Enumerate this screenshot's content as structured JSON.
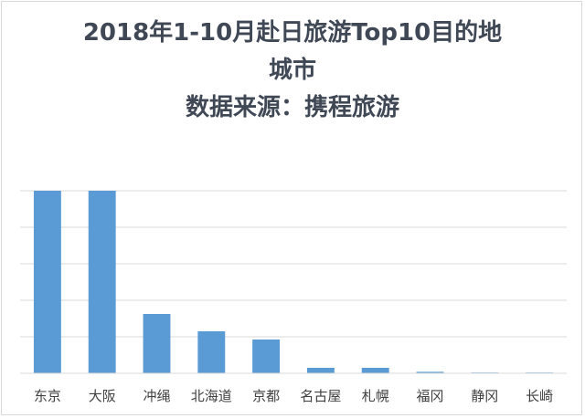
{
  "chart_data": {
    "type": "bar",
    "title_lines": [
      "2018年1-10月赴日旅游Top10目的地",
      "城市",
      "数据来源：携程旅游"
    ],
    "categories": [
      "东京",
      "大阪",
      "冲绳",
      "北海道",
      "京都",
      "名古屋",
      "札幌",
      "福冈",
      "静冈",
      "长崎"
    ],
    "values": [
      100,
      100,
      32.5,
      23,
      18.5,
      3,
      3,
      0.8,
      0.4,
      0.4
    ],
    "ylim": [
      0,
      100
    ],
    "xlabel": "",
    "ylabel": "",
    "grid": true,
    "bar_color": "#5b9bd5",
    "gridline_color": "#d9d9d9"
  }
}
